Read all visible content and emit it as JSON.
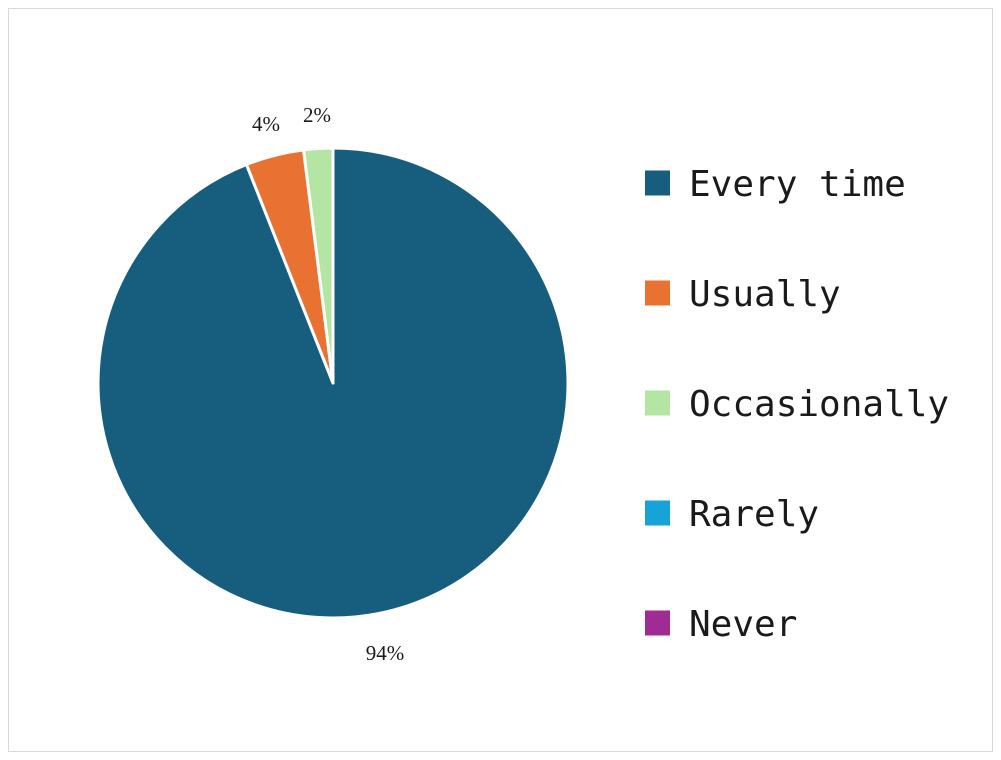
{
  "chart_data": {
    "type": "pie",
    "title": "",
    "slices": [
      {
        "label": "Every time",
        "value": 94,
        "data_label": "94%",
        "color": "#175e7e"
      },
      {
        "label": "Usually",
        "value": 4,
        "data_label": "4%",
        "color": "#e97132"
      },
      {
        "label": "Occasionally",
        "value": 2,
        "data_label": "2%",
        "color": "#b4e5a2"
      },
      {
        "label": "Rarely",
        "value": 0,
        "data_label": "",
        "color": "#17a2d8"
      },
      {
        "label": "Never",
        "value": 0,
        "data_label": "",
        "color": "#a02b93"
      }
    ],
    "start_angle": "12 o'clock",
    "direction": "clockwise",
    "legend_position": "right",
    "slice_border_color": "#ffffff"
  }
}
